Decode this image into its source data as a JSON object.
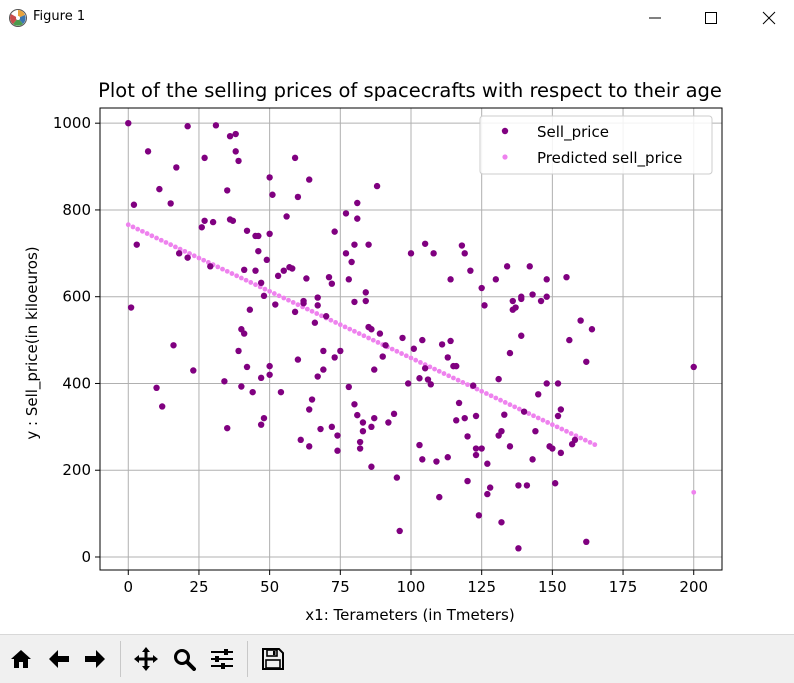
{
  "window": {
    "title": "Figure 1",
    "icons": {
      "app": "matplotlib-icon",
      "minimize": "minimize-icon",
      "maximize": "maximize-icon",
      "close": "close-icon"
    }
  },
  "toolbar": {
    "buttons": [
      {
        "name": "home-icon",
        "label": "Home"
      },
      {
        "name": "back-arrow-icon",
        "label": "Back"
      },
      {
        "name": "forward-arrow-icon",
        "label": "Forward"
      },
      {
        "name": "pan-icon",
        "label": "Pan"
      },
      {
        "name": "zoom-icon",
        "label": "Zoom"
      },
      {
        "name": "configure-subplots-icon",
        "label": "Configure subplots"
      },
      {
        "name": "save-icon",
        "label": "Save"
      }
    ]
  },
  "chart_data": {
    "type": "scatter",
    "title": "Plot of the selling prices of spacecrafts with respect to their age",
    "xlabel": "x1: Terameters (in Tmeters)",
    "ylabel": "y : Sell_price(in kiloeuros)",
    "xlim": [
      -10,
      210
    ],
    "ylim": [
      -30,
      1035
    ],
    "xticks": [
      0,
      25,
      50,
      75,
      100,
      125,
      150,
      175,
      200
    ],
    "yticks": [
      0,
      200,
      400,
      600,
      800,
      1000
    ],
    "grid": true,
    "legend_position": "top-right",
    "series": [
      {
        "name": "Sell_price",
        "color": "#800080",
        "marker_radius": 3.2,
        "points": [
          [
            0,
            1000
          ],
          [
            1,
            575
          ],
          [
            2,
            812
          ],
          [
            3,
            720
          ],
          [
            7,
            935
          ],
          [
            10,
            390
          ],
          [
            11,
            848
          ],
          [
            12,
            347
          ],
          [
            15,
            815
          ],
          [
            16,
            488
          ],
          [
            17,
            898
          ],
          [
            18,
            700
          ],
          [
            21,
            993
          ],
          [
            21,
            690
          ],
          [
            23,
            430
          ],
          [
            26,
            760
          ],
          [
            27,
            920
          ],
          [
            27,
            775
          ],
          [
            29,
            670
          ],
          [
            30,
            772
          ],
          [
            31,
            995
          ],
          [
            34,
            405
          ],
          [
            35,
            297
          ],
          [
            35,
            845
          ],
          [
            36,
            970
          ],
          [
            36,
            778
          ],
          [
            37,
            775
          ],
          [
            38,
            935
          ],
          [
            38,
            975
          ],
          [
            39,
            913
          ],
          [
            39,
            475
          ],
          [
            40,
            393
          ],
          [
            40,
            525
          ],
          [
            41,
            662
          ],
          [
            41,
            515
          ],
          [
            42,
            752
          ],
          [
            42,
            438
          ],
          [
            43,
            570
          ],
          [
            44,
            380
          ],
          [
            45,
            660
          ],
          [
            45,
            740
          ],
          [
            46,
            740
          ],
          [
            46,
            705
          ],
          [
            47,
            413
          ],
          [
            47,
            632
          ],
          [
            47,
            305
          ],
          [
            48,
            320
          ],
          [
            48,
            602
          ],
          [
            49,
            685
          ],
          [
            50,
            440
          ],
          [
            50,
            420
          ],
          [
            50,
            875
          ],
          [
            50,
            745
          ],
          [
            51,
            835
          ],
          [
            52,
            582
          ],
          [
            53,
            648
          ],
          [
            54,
            380
          ],
          [
            55,
            660
          ],
          [
            56,
            785
          ],
          [
            57,
            668
          ],
          [
            58,
            665
          ],
          [
            59,
            920
          ],
          [
            59,
            565
          ],
          [
            60,
            830
          ],
          [
            60,
            455
          ],
          [
            61,
            270
          ],
          [
            62,
            585
          ],
          [
            62,
            590
          ],
          [
            63,
            642
          ],
          [
            64,
            870
          ],
          [
            64,
            255
          ],
          [
            64,
            340
          ],
          [
            65,
            363
          ],
          [
            66,
            540
          ],
          [
            67,
            416
          ],
          [
            67,
            580
          ],
          [
            67,
            598
          ],
          [
            68,
            295
          ],
          [
            69,
            475
          ],
          [
            69,
            432
          ],
          [
            70,
            555
          ],
          [
            71,
            645
          ],
          [
            72,
            300
          ],
          [
            72,
            630
          ],
          [
            73,
            750
          ],
          [
            73,
            460
          ],
          [
            74,
            280
          ],
          [
            74,
            245
          ],
          [
            75,
            475
          ],
          [
            77,
            700
          ],
          [
            77,
            792
          ],
          [
            78,
            392
          ],
          [
            78,
            640
          ],
          [
            79,
            680
          ],
          [
            80,
            588
          ],
          [
            80,
            352
          ],
          [
            80,
            720
          ],
          [
            81,
            816
          ],
          [
            81,
            780
          ],
          [
            81,
            327
          ],
          [
            82,
            265
          ],
          [
            82,
            250
          ],
          [
            83,
            290
          ],
          [
            83,
            310
          ],
          [
            84,
            590
          ],
          [
            84,
            610
          ],
          [
            85,
            720
          ],
          [
            85,
            530
          ],
          [
            86,
            525
          ],
          [
            86,
            300
          ],
          [
            86,
            208
          ],
          [
            87,
            432
          ],
          [
            87,
            320
          ],
          [
            88,
            855
          ],
          [
            89,
            515
          ],
          [
            90,
            462
          ],
          [
            91,
            488
          ],
          [
            92,
            310
          ],
          [
            94,
            330
          ],
          [
            95,
            183
          ],
          [
            96,
            60
          ],
          [
            97,
            505
          ],
          [
            99,
            400
          ],
          [
            100,
            700
          ],
          [
            101,
            480
          ],
          [
            103,
            258
          ],
          [
            103,
            412
          ],
          [
            104,
            500
          ],
          [
            104,
            225
          ],
          [
            105,
            722
          ],
          [
            105,
            435
          ],
          [
            106,
            409
          ],
          [
            107,
            398
          ],
          [
            108,
            700
          ],
          [
            109,
            220
          ],
          [
            110,
            138
          ],
          [
            111,
            490
          ],
          [
            113,
            230
          ],
          [
            113,
            460
          ],
          [
            114,
            640
          ],
          [
            114,
            498
          ],
          [
            115,
            440
          ],
          [
            116,
            440
          ],
          [
            116,
            315
          ],
          [
            117,
            355
          ],
          [
            118,
            718
          ],
          [
            119,
            700
          ],
          [
            119,
            320
          ],
          [
            120,
            175
          ],
          [
            120,
            278
          ],
          [
            121,
            660
          ],
          [
            122,
            395
          ],
          [
            123,
            325
          ],
          [
            123,
            250
          ],
          [
            123,
            235
          ],
          [
            124,
            96
          ],
          [
            125,
            620
          ],
          [
            125,
            250
          ],
          [
            126,
            580
          ],
          [
            127,
            215
          ],
          [
            127,
            145
          ],
          [
            128,
            160
          ],
          [
            130,
            640
          ],
          [
            131,
            410
          ],
          [
            131,
            280
          ],
          [
            132,
            290
          ],
          [
            132,
            80
          ],
          [
            133,
            328
          ],
          [
            134,
            670
          ],
          [
            135,
            470
          ],
          [
            135,
            255
          ],
          [
            136,
            570
          ],
          [
            136,
            590
          ],
          [
            137,
            575
          ],
          [
            138,
            165
          ],
          [
            138,
            20
          ],
          [
            139,
            595
          ],
          [
            139,
            510
          ],
          [
            139,
            600
          ],
          [
            140,
            335
          ],
          [
            141,
            165
          ],
          [
            142,
            670
          ],
          [
            143,
            605
          ],
          [
            143,
            225
          ],
          [
            144,
            290
          ],
          [
            145,
            375
          ],
          [
            146,
            590
          ],
          [
            148,
            640
          ],
          [
            148,
            600
          ],
          [
            148,
            400
          ],
          [
            149,
            255
          ],
          [
            150,
            250
          ],
          [
            151,
            170
          ],
          [
            152,
            325
          ],
          [
            152,
            400
          ],
          [
            153,
            240
          ],
          [
            153,
            340
          ],
          [
            155,
            645
          ],
          [
            156,
            500
          ],
          [
            157,
            260
          ],
          [
            158,
            270
          ],
          [
            160,
            545
          ],
          [
            162,
            450
          ],
          [
            162,
            35
          ],
          [
            164,
            525
          ],
          [
            200,
            438
          ]
        ]
      },
      {
        "name": "Predicted sell_price",
        "color": "#ee82ee",
        "marker_radius": 2.4,
        "line": {
          "from": [
            0,
            766
          ],
          "to": [
            165,
            259
          ],
          "count": 100
        },
        "points": [
          [
            0,
            1000
          ],
          [
            200,
            149
          ]
        ]
      }
    ]
  }
}
